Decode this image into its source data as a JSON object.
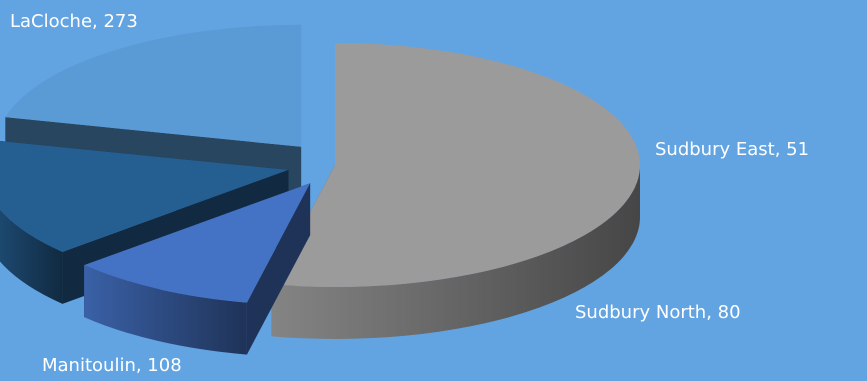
{
  "colors": {
    "background": "#62a4e2",
    "label_text": "#ffffff"
  },
  "chart_data": {
    "type": "pie",
    "style": "3d-exploded",
    "title": "",
    "legend": "none",
    "slices": [
      {
        "name": "LaCloche",
        "value": 273,
        "label": "LaCloche, 273",
        "color": "#9b9b9b"
      },
      {
        "name": "Sudbury East",
        "value": 51,
        "label": "Sudbury East, 51",
        "color": "#4472c4"
      },
      {
        "name": "Sudbury North",
        "value": 80,
        "label": "Sudbury North, 80",
        "color": "#255e91"
      },
      {
        "name": "Manitoulin",
        "value": 108,
        "label": "Manitoulin, 108",
        "color": "#5b9bd5"
      }
    ]
  }
}
